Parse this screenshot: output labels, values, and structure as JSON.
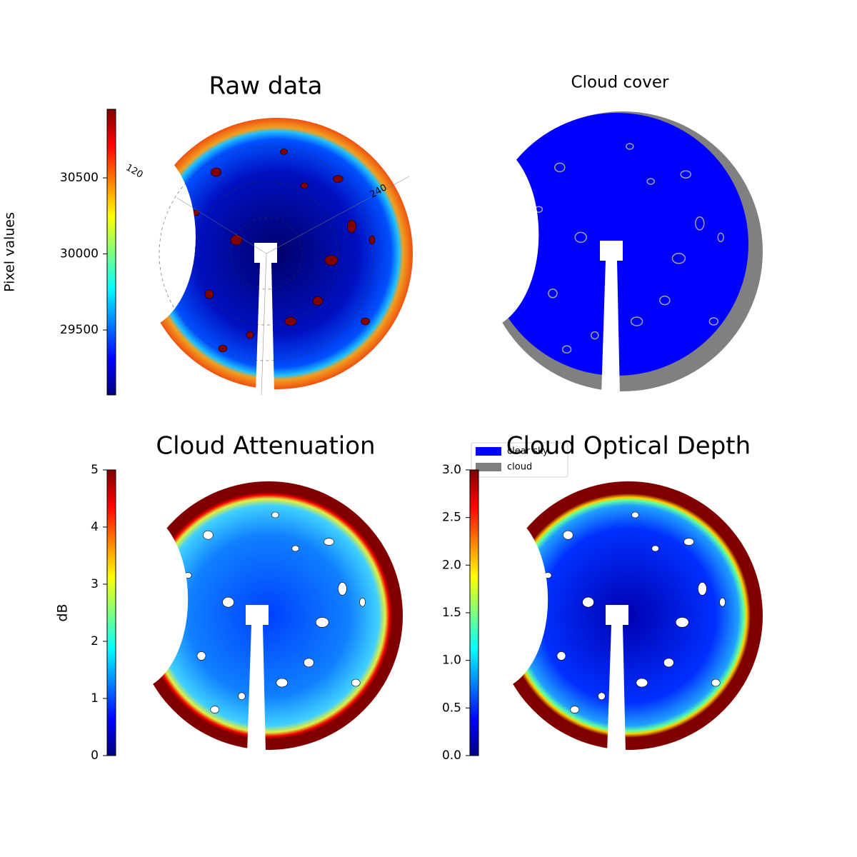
{
  "chart_data": [
    {
      "type": "image",
      "title": "Raw data",
      "colorbar_label": "Pixel values",
      "colormap": "jet",
      "ylim": [
        29073,
        30951
      ],
      "yticks": [
        29500,
        30000,
        30500
      ],
      "polar_labels": [
        "120",
        "240"
      ]
    },
    {
      "type": "image",
      "title": "Cloud cover",
      "series": [
        {
          "name": "clear sky",
          "color": "#0000ff"
        },
        {
          "name": "cloud",
          "color": "#808080"
        }
      ]
    },
    {
      "type": "image",
      "title": "Cloud Attenuation",
      "colorbar_label": "dB",
      "colormap": "jet",
      "ylim": [
        0,
        5
      ],
      "yticks": [
        0,
        1,
        2,
        3,
        4,
        5
      ]
    },
    {
      "type": "image",
      "title": "Cloud Optical Depth",
      "colormap": "jet",
      "ylim": [
        0,
        3
      ],
      "yticks": [
        {
          "value": 0,
          "label": "0.0"
        },
        {
          "value": 0.5,
          "label": "0.5"
        },
        {
          "value": 1,
          "label": "1.0"
        },
        {
          "value": 1.5,
          "label": "1.5"
        },
        {
          "value": 2,
          "label": "2.0"
        },
        {
          "value": 2.5,
          "label": "2.5"
        },
        {
          "value": 3,
          "label": "3.0"
        }
      ]
    }
  ]
}
